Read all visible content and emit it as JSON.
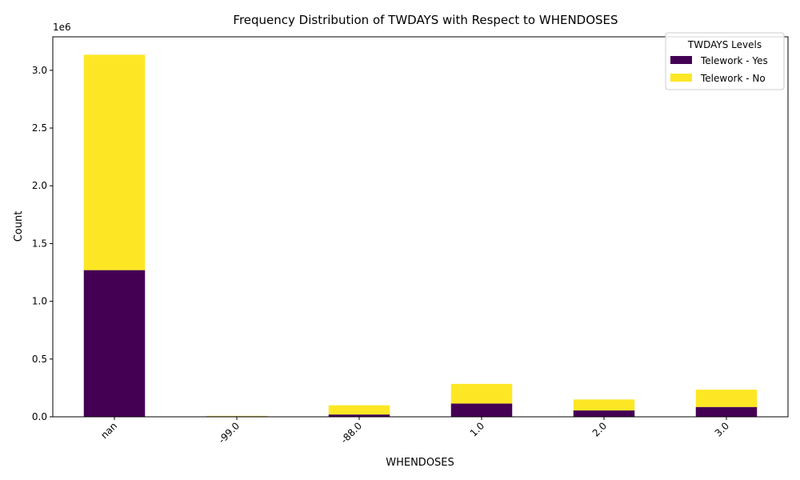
{
  "chart_data": {
    "type": "bar",
    "stacked": true,
    "title": "Frequency Distribution of TWDAYS with Respect to WHENDOSES",
    "xlabel": "WHENDOSES",
    "ylabel": "Count",
    "y_offset_label": "1e6",
    "categories": [
      "nan",
      "-99.0",
      "-88.0",
      "1.0",
      "2.0",
      "3.0"
    ],
    "ylim": [
      0,
      3290000
    ],
    "yticks": [
      0,
      500000,
      1000000,
      1500000,
      2000000,
      2500000,
      3000000
    ],
    "ytick_labels": [
      "0.0",
      "0.5",
      "1.0",
      "1.5",
      "2.0",
      "2.5",
      "3.0"
    ],
    "legend_title": "TWDAYS Levels",
    "legend_position": "top-right",
    "series": [
      {
        "name": "Telework - Yes",
        "color": "#440154",
        "values": [
          1270000,
          5000,
          20000,
          115000,
          55000,
          85000
        ]
      },
      {
        "name": "Telework - No",
        "color": "#fde725",
        "values": [
          1865000,
          3000,
          80000,
          170000,
          95000,
          150000
        ]
      }
    ]
  }
}
